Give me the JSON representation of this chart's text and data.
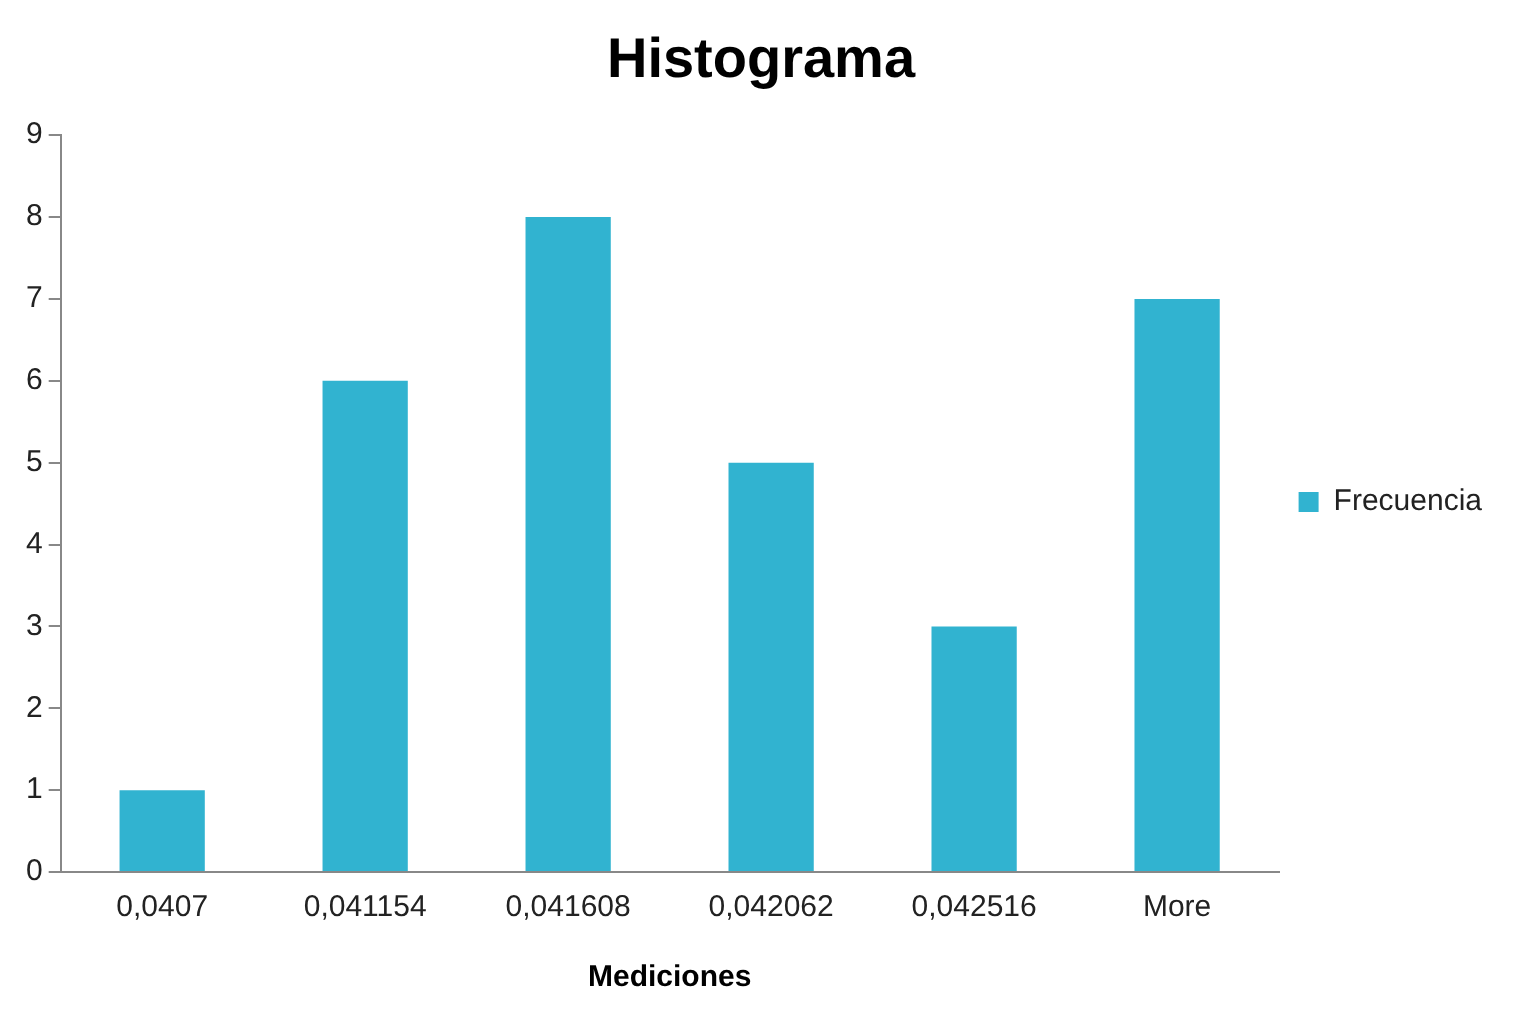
{
  "chart_data": {
    "type": "bar",
    "title": "Histograma",
    "xlabel": "Mediciones",
    "categories": [
      "0,0407",
      "0,041154",
      "0,041608",
      "0,042062",
      "0,042516",
      "More"
    ],
    "series": [
      {
        "name": "Frecuencia",
        "color": "#31b3d0",
        "values": [
          1,
          6,
          8,
          5,
          3,
          7
        ]
      }
    ],
    "ylim": [
      0,
      9
    ],
    "yticks": [
      0,
      1,
      2,
      3,
      4,
      5,
      6,
      7,
      8,
      9
    ],
    "grid": false,
    "legend": "right"
  }
}
